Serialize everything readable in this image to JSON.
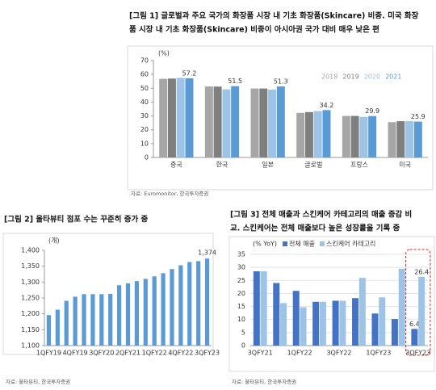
{
  "chart_data": [
    {
      "type": "bar",
      "title": [
        "[그림 1] 글로벌과 주요 국가의 화장품 시장 내 기초 화장품(Skincare) 비중. 미국 화장",
        "품 시장 내 기초 화장품(Skincare) 비중이 아시아권 국가 대비 매우 낮은 편"
      ],
      "unit": "(%)",
      "source": "자료: Euromonitor, 한국투자증권",
      "categories": [
        "중국",
        "한국",
        "일본",
        "글로벌",
        "프랑스",
        "미국"
      ],
      "series": [
        {
          "name": "2018",
          "color": "#a6a6a6",
          "values": [
            56.8,
            51.3,
            49.8,
            32.2,
            30.0,
            25.5
          ]
        },
        {
          "name": "2019",
          "color": "#7f7f7f",
          "values": [
            57.0,
            51.2,
            49.8,
            32.8,
            30.0,
            26.2
          ]
        },
        {
          "name": "2020",
          "color": "#9dc3e6",
          "values": [
            57.5,
            49.2,
            49.0,
            33.5,
            29.3,
            26.2
          ]
        },
        {
          "name": "2021",
          "color": "#5b9bd5",
          "values": [
            57.2,
            51.5,
            51.3,
            34.2,
            29.9,
            25.9
          ],
          "show_labels": "all"
        }
      ],
      "ylim": [
        0,
        70
      ],
      "yticks": [
        0,
        10,
        20,
        30,
        40,
        50,
        60,
        70
      ],
      "grid": false,
      "legend": "top-right",
      "legend_style": "text"
    },
    {
      "type": "bar",
      "title": [
        "[그림 2] 울타뷰티 점포 수는 꾸준히 증가 중"
      ],
      "unit": "(개)",
      "source": "자료: 울타뷰티, 한국투자증권",
      "categories": [
        "1QFY19",
        null,
        null,
        "4QFY19",
        null,
        null,
        "3QFY20",
        null,
        null,
        "2QFY21",
        null,
        null,
        "1QFY22",
        null,
        null,
        "4QFY22",
        null,
        null,
        "3QFY23"
      ],
      "values": [
        1196,
        1213,
        1241,
        1254,
        1262,
        1262,
        1262,
        1263,
        1290,
        1296,
        1303,
        1310,
        1318,
        1328,
        1341,
        1353,
        1363,
        1366,
        1374
      ],
      "value_labels": [
        null,
        null,
        null,
        null,
        null,
        null,
        null,
        null,
        null,
        null,
        null,
        null,
        null,
        null,
        null,
        null,
        null,
        null,
        "1,374"
      ],
      "color": "#5b9bd5",
      "ylim": [
        1100,
        1400
      ],
      "yticks": [
        {
          "value": 1100,
          "label": "1,100"
        },
        {
          "value": 1150,
          "label": "1,150"
        },
        {
          "value": 1200,
          "label": "1,200"
        },
        {
          "value": 1250,
          "label": "1,250"
        },
        {
          "value": 1300,
          "label": "1,300"
        },
        {
          "value": 1350,
          "label": "1,350"
        },
        {
          "value": 1400,
          "label": "1,400"
        }
      ],
      "grid": false
    },
    {
      "type": "bar",
      "title": [
        "[그림 3] 전체 매출과 스킨케어 카테고리의 매출 증감 비",
        "교. 스킨케어는 전체 매출보다 높은 성장률을 기록 중"
      ],
      "unit": "(% YoY)",
      "source": "자료: 울타뷰티, 한국투자증권",
      "categories": [
        "3QFY21",
        null,
        "1QFY22",
        null,
        "3QFY22",
        null,
        "1QFY23",
        null,
        "3QFY23"
      ],
      "series": [
        {
          "name": "전체 매출",
          "color": "#4472c4",
          "values": [
            28.5,
            24.0,
            21.0,
            16.8,
            17.2,
            18.2,
            12.3,
            10.2,
            6.4
          ],
          "show_labels": "last"
        },
        {
          "name": "스킨케어 카테고리",
          "color": "#9dc3e6",
          "values": [
            28.5,
            16.3,
            14.7,
            16.8,
            17.2,
            26.0,
            18.5,
            29.5,
            26.4
          ],
          "show_labels": "last"
        }
      ],
      "ylim": [
        0,
        35
      ],
      "yticks": [
        0,
        5,
        10,
        15,
        20,
        25,
        30,
        35
      ],
      "grid": true,
      "legend": "top-left",
      "legend_style": "swatch"
    }
  ]
}
